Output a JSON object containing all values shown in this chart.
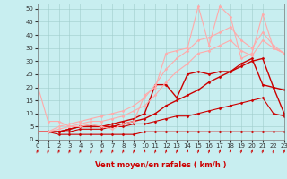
{
  "xlabel": "Vent moyen/en rafales ( km/h )",
  "background_color": "#c8eef0",
  "grid_color": "#a0cccc",
  "xlim": [
    0,
    23
  ],
  "ylim": [
    0,
    52
  ],
  "yticks": [
    0,
    5,
    10,
    15,
    20,
    25,
    30,
    35,
    40,
    45,
    50
  ],
  "xticks": [
    0,
    1,
    2,
    3,
    4,
    5,
    6,
    7,
    8,
    9,
    10,
    11,
    12,
    13,
    14,
    15,
    16,
    17,
    18,
    19,
    20,
    21,
    22,
    23
  ],
  "series": [
    {
      "x": [
        0,
        1,
        2,
        3,
        4,
        5,
        6,
        7,
        8,
        9,
        10,
        11,
        12,
        13,
        14,
        15,
        16,
        17,
        18,
        19,
        20,
        21,
        22,
        23
      ],
      "y": [
        3,
        3,
        2,
        2,
        2,
        2,
        2,
        2,
        2,
        2,
        3,
        3,
        3,
        3,
        3,
        3,
        3,
        3,
        3,
        3,
        3,
        3,
        3,
        3
      ],
      "color": "#cc0000",
      "lw": 0.8,
      "marker": "D",
      "ms": 1.5
    },
    {
      "x": [
        0,
        1,
        2,
        3,
        4,
        5,
        6,
        7,
        8,
        9,
        10,
        11,
        12,
        13,
        14,
        15,
        16,
        17,
        18,
        19,
        20,
        21,
        22,
        23
      ],
      "y": [
        3,
        3,
        3,
        3,
        4,
        4,
        4,
        5,
        5,
        6,
        6,
        7,
        8,
        9,
        9,
        10,
        11,
        12,
        13,
        14,
        15,
        16,
        10,
        9
      ],
      "color": "#cc0000",
      "lw": 0.8,
      "marker": "D",
      "ms": 1.5
    },
    {
      "x": [
        0,
        1,
        2,
        3,
        4,
        5,
        6,
        7,
        8,
        9,
        10,
        11,
        12,
        13,
        14,
        15,
        16,
        17,
        18,
        19,
        20,
        21,
        22,
        23
      ],
      "y": [
        3,
        3,
        3,
        4,
        5,
        5,
        5,
        5,
        6,
        7,
        8,
        10,
        13,
        15,
        17,
        19,
        22,
        24,
        26,
        28,
        30,
        31,
        20,
        10
      ],
      "color": "#cc0000",
      "lw": 1.0,
      "marker": "D",
      "ms": 1.5
    },
    {
      "x": [
        0,
        1,
        2,
        3,
        4,
        5,
        6,
        7,
        8,
        9,
        10,
        11,
        12,
        13,
        14,
        15,
        16,
        17,
        18,
        19,
        20,
        21,
        22,
        23
      ],
      "y": [
        3,
        3,
        3,
        4,
        5,
        5,
        5,
        6,
        7,
        8,
        10,
        21,
        21,
        16,
        25,
        26,
        25,
        26,
        26,
        29,
        31,
        21,
        20,
        19
      ],
      "color": "#cc0000",
      "lw": 1.0,
      "marker": "D",
      "ms": 1.5
    },
    {
      "x": [
        0,
        1,
        2,
        3,
        4,
        5,
        6,
        7,
        8,
        9,
        10,
        11,
        12,
        13,
        14,
        15,
        16,
        17,
        18,
        19,
        20,
        21,
        22,
        23
      ],
      "y": [
        21,
        7,
        7,
        5,
        5,
        6,
        5,
        4,
        6,
        7,
        17,
        20,
        33,
        34,
        35,
        51,
        36,
        51,
        47,
        31,
        33,
        48,
        35,
        33
      ],
      "color": "#ffaaaa",
      "lw": 0.8,
      "marker": "D",
      "ms": 1.5
    },
    {
      "x": [
        0,
        1,
        2,
        3,
        4,
        5,
        6,
        7,
        8,
        9,
        10,
        11,
        12,
        13,
        14,
        15,
        16,
        17,
        18,
        19,
        20,
        21,
        22,
        23
      ],
      "y": [
        3,
        3,
        4,
        5,
        6,
        7,
        7,
        8,
        9,
        11,
        13,
        17,
        22,
        26,
        29,
        33,
        34,
        36,
        38,
        34,
        32,
        38,
        35,
        33
      ],
      "color": "#ffaaaa",
      "lw": 0.8,
      "marker": "D",
      "ms": 1.5
    },
    {
      "x": [
        0,
        1,
        2,
        3,
        4,
        5,
        6,
        7,
        8,
        9,
        10,
        11,
        12,
        13,
        14,
        15,
        16,
        17,
        18,
        19,
        20,
        21,
        22,
        23
      ],
      "y": [
        3,
        3,
        5,
        6,
        7,
        8,
        9,
        10,
        11,
        13,
        16,
        21,
        27,
        31,
        34,
        38,
        39,
        41,
        43,
        38,
        35,
        41,
        36,
        33
      ],
      "color": "#ffaaaa",
      "lw": 0.8,
      "marker": "D",
      "ms": 1.5
    }
  ],
  "arrow_color": "#cc0000",
  "label_color": "#cc0000",
  "tick_color": "#333333",
  "tick_fontsize": 5.0,
  "xlabel_fontsize": 6.0
}
